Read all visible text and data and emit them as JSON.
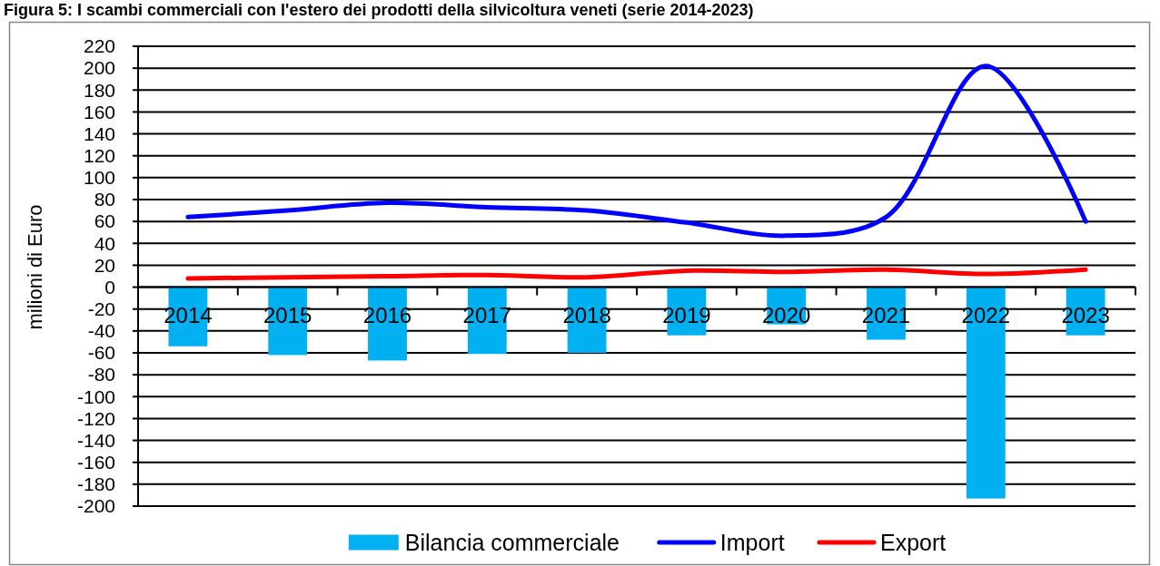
{
  "chart_data": {
    "type": "bar",
    "title": "Figura 5: I scambi commerciali con l'estero dei prodotti della silvicoltura veneti (serie 2014-2023)",
    "ylabel": "milioni di Euro",
    "categories": [
      "2014",
      "2015",
      "2016",
      "2017",
      "2018",
      "2019",
      "2020",
      "2021",
      "2022",
      "2023"
    ],
    "series": [
      {
        "name": "Bilancia commerciale",
        "color": "#00b0f0",
        "values": [
          -54,
          -62,
          -67,
          -61,
          -60,
          -44,
          -34,
          -48,
          -193,
          -44
        ]
      },
      {
        "name": "Import",
        "type": "line",
        "color": "#0000ff",
        "values": [
          64,
          70,
          77,
          73,
          70,
          59,
          47,
          64,
          202,
          60
        ]
      },
      {
        "name": "Export",
        "type": "line",
        "color": "#ff0000",
        "values": [
          8,
          9,
          10,
          11,
          9,
          15,
          14,
          16,
          12,
          16
        ]
      }
    ],
    "ylim": [
      -200,
      220
    ],
    "yticks": [
      -200,
      -180,
      -160,
      -140,
      -120,
      -100,
      -80,
      -60,
      -40,
      -20,
      0,
      20,
      40,
      60,
      80,
      100,
      120,
      140,
      160,
      180,
      200,
      220
    ],
    "grid": "y",
    "legend": "bottom"
  }
}
